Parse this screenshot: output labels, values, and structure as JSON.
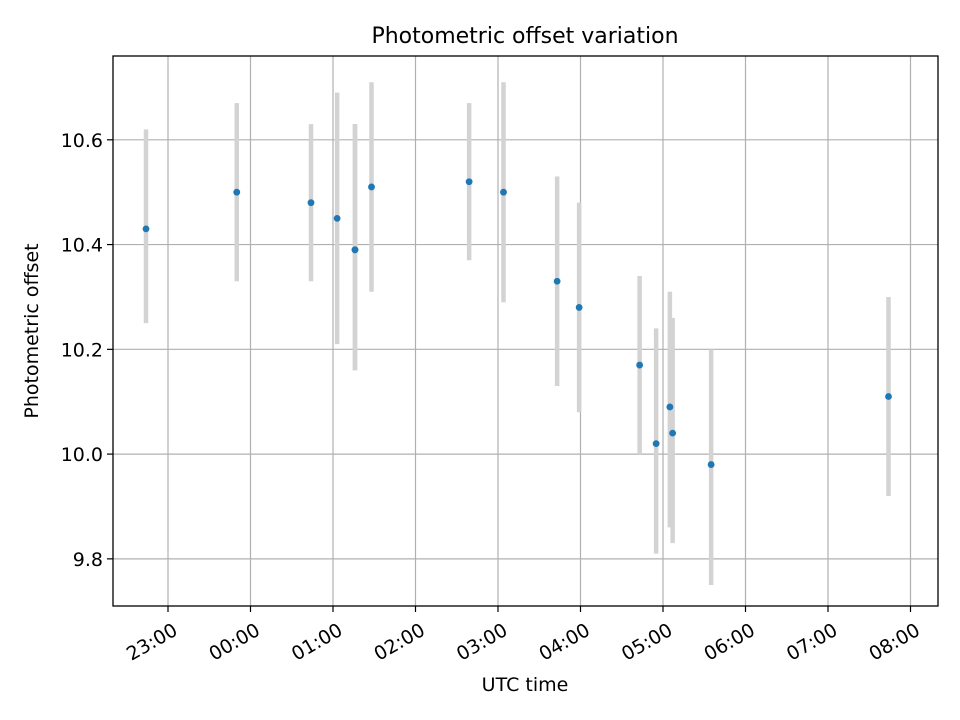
{
  "chart_data": {
    "type": "scatter",
    "title": "Photometric offset variation",
    "xlabel": "UTC time",
    "ylabel": "Photometric offset",
    "x_axis": {
      "type": "time",
      "range": [
        "22:20",
        "08:20"
      ],
      "tick_labels": [
        "23:00",
        "00:00",
        "01:00",
        "02:00",
        "03:00",
        "04:00",
        "05:00",
        "06:00",
        "07:00",
        "08:00"
      ],
      "tick_rotation_deg": 30
    },
    "y_axis": {
      "range": [
        9.71,
        10.76
      ],
      "tick_values": [
        9.8,
        10.0,
        10.2,
        10.4,
        10.6
      ],
      "tick_labels": [
        "9.8",
        "10.0",
        "10.2",
        "10.4",
        "10.6"
      ]
    },
    "grid": true,
    "point_color": "#1f77b4",
    "errorbar_color": "#d3d3d3",
    "series": [
      {
        "points": [
          {
            "x": "22:44",
            "y": 10.43,
            "ylo": 10.25,
            "yhi": 10.62
          },
          {
            "x": "23:50",
            "y": 10.5,
            "ylo": 10.33,
            "yhi": 10.67
          },
          {
            "x": "00:44",
            "y": 10.48,
            "ylo": 10.33,
            "yhi": 10.63
          },
          {
            "x": "01:03",
            "y": 10.45,
            "ylo": 10.21,
            "yhi": 10.69
          },
          {
            "x": "01:16",
            "y": 10.39,
            "ylo": 10.16,
            "yhi": 10.63
          },
          {
            "x": "01:16",
            "y": 10.39,
            "ylo": 10.16,
            "yhi": 10.63
          },
          {
            "x": "01:28",
            "y": 10.51,
            "ylo": 10.31,
            "yhi": 10.71
          },
          {
            "x": "02:39",
            "y": 10.52,
            "ylo": 10.37,
            "yhi": 10.67
          },
          {
            "x": "03:04",
            "y": 10.5,
            "ylo": 10.29,
            "yhi": 10.71
          },
          {
            "x": "03:43",
            "y": 10.33,
            "ylo": 10.13,
            "yhi": 10.53
          },
          {
            "x": "03:59",
            "y": 10.28,
            "ylo": 10.08,
            "yhi": 10.48
          },
          {
            "x": "04:43",
            "y": 10.17,
            "ylo": 10.0,
            "yhi": 10.34
          },
          {
            "x": "04:55",
            "y": 10.02,
            "ylo": 9.81,
            "yhi": 10.24
          },
          {
            "x": "05:05",
            "y": 10.09,
            "ylo": 9.86,
            "yhi": 10.31
          },
          {
            "x": "05:07",
            "y": 10.04,
            "ylo": 9.83,
            "yhi": 10.26
          },
          {
            "x": "05:35",
            "y": 9.98,
            "ylo": 9.75,
            "yhi": 10.2
          },
          {
            "x": "07:44",
            "y": 10.11,
            "ylo": 9.92,
            "yhi": 10.3
          }
        ]
      }
    ]
  }
}
